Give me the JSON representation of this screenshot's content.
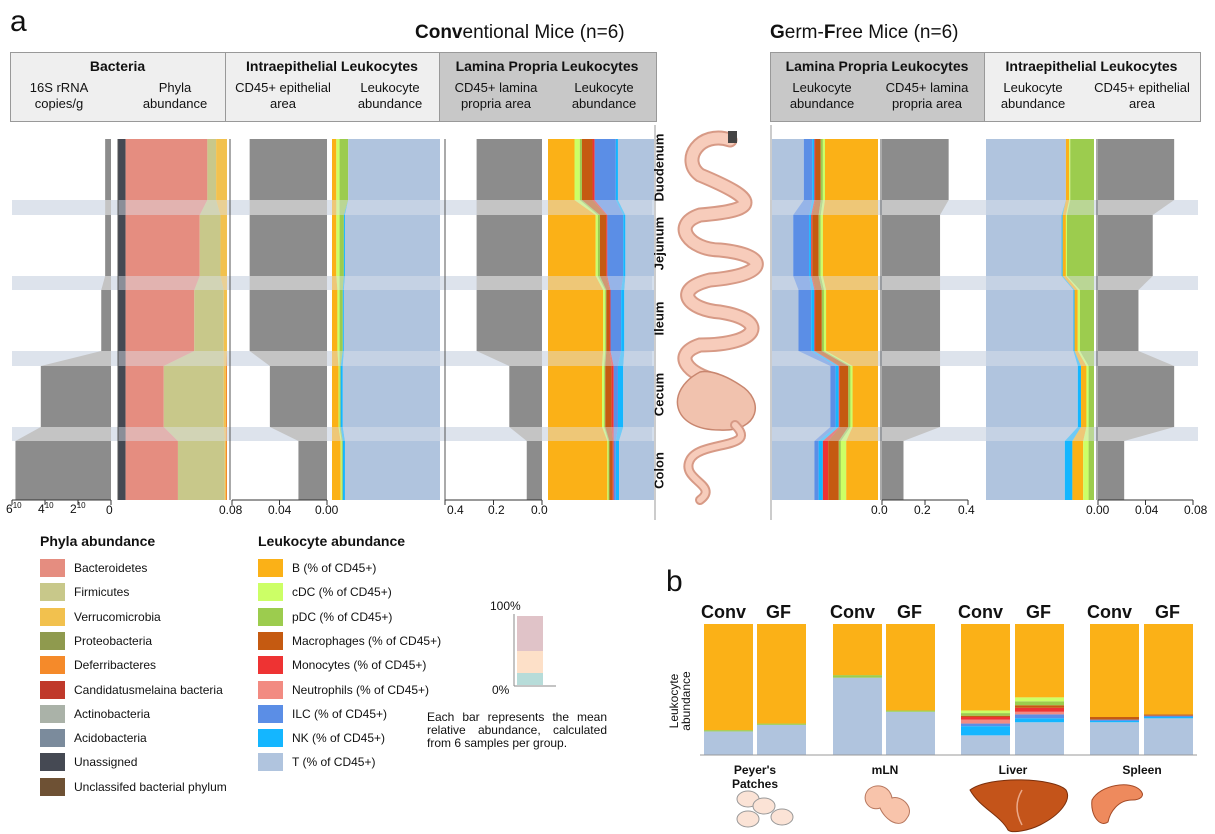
{
  "panel_a": {
    "letter": "a",
    "conv_title": {
      "b1": "Conv",
      "r1": "entional Mice (n=6)"
    },
    "gf_title": {
      "b1": "G",
      "r1": "erm-",
      "b2": "F",
      "r2": "ree Mice (n=6)"
    },
    "headers": {
      "bacteria": {
        "title": "Bacteria",
        "sub1": "16S rRNA copies/g",
        "sub2": "Phyla abundance"
      },
      "iel_conv": {
        "title": "Intraepithelial Leukocytes",
        "sub1": "CD45+ epithelial area",
        "sub2": "Leukocyte abundance"
      },
      "lp_conv": {
        "title": "Lamina Propria Leukocytes",
        "sub1": "CD45+ lamina propria area",
        "sub2": "Leukocyte abundance"
      },
      "lp_gf": {
        "title": "Lamina Propria Leukocytes",
        "sub1": "Leukocyte abundance",
        "sub2": "CD45+ lamina propria area"
      },
      "iel_gf": {
        "title": "Intraepithelial Leukocytes",
        "sub1": "Leukocyte abundance",
        "sub2": "CD45+ epithelial area"
      }
    },
    "regions": [
      "Duodenum",
      "Jejunum",
      "Ileum",
      "Cecum",
      "Colon"
    ],
    "axis_ticks": {
      "rrna": [
        "6",
        "4",
        "2",
        "0"
      ],
      "rrna_exp": "10",
      "iel_conv": [
        "0.08",
        "0.04",
        "0.00"
      ],
      "lp_conv": [
        "0.4",
        "0.2",
        "0.0"
      ],
      "lp_gf": [
        "0.0",
        "0.2",
        "0.4"
      ],
      "iel_gf": [
        "0.00",
        "0.04",
        "0.08"
      ]
    }
  },
  "chart_data": {
    "type": "bar",
    "categories": [
      "Duodenum",
      "Jejunum",
      "Ileum",
      "Cecum",
      "Colon"
    ],
    "rrna_log2_copies": [
      0.3,
      0.3,
      0.5,
      3.6,
      4.9
    ],
    "phyla": {
      "names": [
        "Unassigned",
        "Bacteroidetes",
        "Firmicutes",
        "Verrucomicrobia",
        "Deferribacteres"
      ],
      "values": [
        [
          0.07,
          0.75,
          0.08,
          0.1,
          0.0
        ],
        [
          0.07,
          0.68,
          0.19,
          0.06,
          0.0
        ],
        [
          0.07,
          0.63,
          0.27,
          0.03,
          0.0
        ],
        [
          0.07,
          0.35,
          0.55,
          0.02,
          0.01
        ],
        [
          0.07,
          0.48,
          0.43,
          0.01,
          0.01
        ]
      ]
    },
    "iel_area_conv": [
      0.065,
      0.065,
      0.065,
      0.048,
      0.024
    ],
    "iel_abund_conv": {
      "names": [
        "B",
        "cDC",
        "pDC",
        "NK",
        "T"
      ],
      "values": [
        [
          0.04,
          0.03,
          0.08,
          0.0,
          0.85
        ],
        [
          0.04,
          0.03,
          0.04,
          0.01,
          0.88
        ],
        [
          0.05,
          0.02,
          0.03,
          0.01,
          0.89
        ],
        [
          0.06,
          0.01,
          0.01,
          0.02,
          0.9
        ],
        [
          0.08,
          0.01,
          0.01,
          0.02,
          0.88
        ]
      ]
    },
    "lp_area_conv": [
      0.3,
      0.3,
      0.3,
      0.15,
      0.07
    ],
    "lp_abund_conv": {
      "names": [
        "B",
        "cDC",
        "pDC",
        "Macrophages",
        "Monocytes",
        "ILC",
        "NK",
        "T"
      ],
      "values": [
        [
          0.25,
          0.05,
          0.02,
          0.1,
          0.02,
          0.2,
          0.02,
          0.34
        ],
        [
          0.45,
          0.02,
          0.02,
          0.06,
          0.01,
          0.15,
          0.02,
          0.27
        ],
        [
          0.52,
          0.02,
          0.01,
          0.03,
          0.01,
          0.1,
          0.03,
          0.28
        ],
        [
          0.51,
          0.02,
          0.01,
          0.06,
          0.02,
          0.04,
          0.05,
          0.29
        ],
        [
          0.56,
          0.01,
          0.01,
          0.03,
          0.01,
          0.02,
          0.03,
          0.33
        ]
      ]
    },
    "lp_abund_gf": {
      "names": [
        "T",
        "ILC",
        "NK",
        "Monocytes",
        "Macrophages",
        "pDC",
        "cDC",
        "B"
      ],
      "values": [
        [
          0.3,
          0.08,
          0.02,
          0.01,
          0.05,
          0.02,
          0.02,
          0.5
        ],
        [
          0.2,
          0.15,
          0.02,
          0.01,
          0.06,
          0.02,
          0.02,
          0.52
        ],
        [
          0.25,
          0.12,
          0.03,
          0.01,
          0.06,
          0.02,
          0.02,
          0.49
        ],
        [
          0.55,
          0.05,
          0.03,
          0.01,
          0.08,
          0.02,
          0.02,
          0.24
        ],
        [
          0.4,
          0.04,
          0.04,
          0.05,
          0.1,
          0.02,
          0.05,
          0.3
        ]
      ]
    },
    "lp_area_gf": [
      0.31,
      0.27,
      0.27,
      0.27,
      0.1
    ],
    "iel_abund_gf": {
      "names": [
        "T",
        "NK",
        "B",
        "cDC",
        "pDC"
      ],
      "values": [
        [
          0.74,
          0.0,
          0.03,
          0.01,
          0.22
        ],
        [
          0.7,
          0.01,
          0.03,
          0.01,
          0.25
        ],
        [
          0.81,
          0.01,
          0.03,
          0.02,
          0.13
        ],
        [
          0.85,
          0.03,
          0.05,
          0.02,
          0.05
        ],
        [
          0.73,
          0.07,
          0.1,
          0.05,
          0.05
        ]
      ]
    },
    "iel_area_gf": [
      0.064,
      0.046,
      0.034,
      0.064,
      0.022
    ]
  },
  "legend": {
    "phyla_title": "Phyla abundance",
    "phyla": [
      {
        "label": "Bacteroidetes",
        "color": "#e58d80"
      },
      {
        "label": "Firmicutes",
        "color": "#c8c88a"
      },
      {
        "label": "Verrucomicrobia",
        "color": "#f2c14e"
      },
      {
        "label": "Proteobacteria",
        "color": "#8f9a4e"
      },
      {
        "label": "Deferribacteres",
        "color": "#f58a2a"
      },
      {
        "label": "Candidatusmelaina bacteria",
        "color": "#c0392b"
      },
      {
        "label": "Actinobacteria",
        "color": "#aab2a8"
      },
      {
        "label": "Acidobacteria",
        "color": "#7b8b9c"
      },
      {
        "label": "Unassigned",
        "color": "#454953"
      },
      {
        "label": "Unclassifed bacterial phylum",
        "color": "#6e5134"
      }
    ],
    "leuko_title": "Leukocyte abundance",
    "leuko": [
      {
        "label": "B (% of CD45+)",
        "color": "#fbb117"
      },
      {
        "label": "cDC (% of CD45+)",
        "color": "#ccff66"
      },
      {
        "label": "pDC (% of CD45+)",
        "color": "#9ccc4e"
      },
      {
        "label": "Macrophages (% of CD45+)",
        "color": "#c55a11"
      },
      {
        "label": "Monocytes (% of CD45+)",
        "color": "#ee3333"
      },
      {
        "label": "Neutrophils (% of CD45+)",
        "color": "#f28b82"
      },
      {
        "label": "ILC (% of CD45+)",
        "color": "#5b8ee6"
      },
      {
        "label": "NK (% of CD45+)",
        "color": "#14b6ff"
      },
      {
        "label": "T (% of CD45+)",
        "color": "#b0c4de"
      }
    ],
    "mini_bar": {
      "top": "100%",
      "bottom": "0%"
    },
    "note": "Each bar represents the mean relative abundance, calculated from 6 samples per group."
  },
  "panel_b": {
    "letter": "b",
    "ylabel_1": "Leukocyte",
    "ylabel_2": "abundance",
    "groups": [
      {
        "conv": "Conv",
        "gf": "GF",
        "organ_1": "Peyer's",
        "organ_2": "Patches"
      },
      {
        "conv": "Conv",
        "gf": "GF",
        "organ_1": "mLN",
        "organ_2": ""
      },
      {
        "conv": "Conv",
        "gf": "GF",
        "organ_1": "Liver",
        "organ_2": ""
      },
      {
        "conv": "Conv",
        "gf": "GF",
        "organ_1": "Spleen",
        "organ_2": ""
      }
    ],
    "bars": {
      "names": [
        "T",
        "NK",
        "ILC",
        "Neutrophils",
        "Monocytes",
        "Macrophages",
        "pDC",
        "cDC",
        "B"
      ],
      "values": [
        [
          0.18,
          0.0,
          0.0,
          0.0,
          0.0,
          0.0,
          0.01,
          0.0,
          0.81
        ],
        [
          0.23,
          0.0,
          0.0,
          0.0,
          0.0,
          0.0,
          0.01,
          0.0,
          0.76
        ],
        [
          0.59,
          0.0,
          0.0,
          0.0,
          0.0,
          0.0,
          0.02,
          0.0,
          0.39
        ],
        [
          0.33,
          0.0,
          0.0,
          0.0,
          0.0,
          0.0,
          0.01,
          0.0,
          0.66
        ],
        [
          0.15,
          0.07,
          0.02,
          0.03,
          0.02,
          0.01,
          0.02,
          0.02,
          0.66
        ],
        [
          0.25,
          0.03,
          0.03,
          0.02,
          0.03,
          0.02,
          0.03,
          0.03,
          0.56
        ],
        [
          0.25,
          0.01,
          0.01,
          0.0,
          0.0,
          0.02,
          0.0,
          0.0,
          0.71
        ],
        [
          0.28,
          0.01,
          0.01,
          0.0,
          0.0,
          0.01,
          0.0,
          0.0,
          0.69
        ]
      ]
    }
  }
}
